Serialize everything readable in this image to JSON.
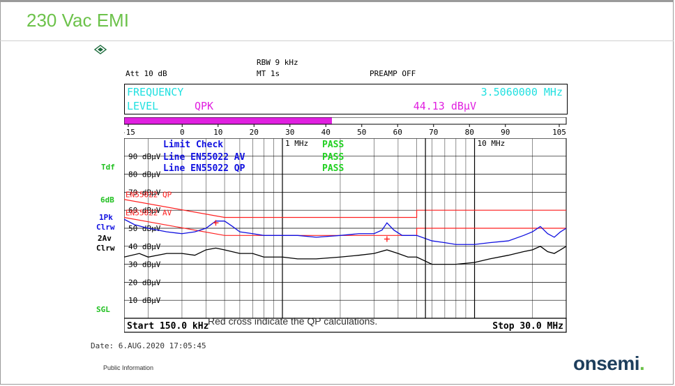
{
  "slide": {
    "title": "230 Vac EMI",
    "caption": "Red cross indicate the QP calculations.",
    "public_info": "Public Information",
    "brand": "onsemi",
    "brand_dot": "."
  },
  "instrument": {
    "rbw": "RBW 9 kHz",
    "att": "Att  10 dB",
    "mt": "MT   1s",
    "preamp": "PREAMP OFF",
    "marker_freq_label": "FREQUENCY",
    "marker_freq_value": "3.5060000 MHz",
    "marker_level_label": "LEVEL",
    "marker_detector": "QPK",
    "marker_level_value": "44.13 dBµV",
    "bar_fill_percent": 47,
    "bar_scale": [
      "-15",
      "0",
      "10",
      "20",
      "30",
      "40",
      "50",
      "60",
      "70",
      "80",
      "90",
      "105"
    ],
    "side_labels": {
      "tdf": "Tdf",
      "six_db": "6dB",
      "pk": "1Pk",
      "clrw1": "Clrw",
      "av": "2Av",
      "clrw2": "Clrw",
      "sgl": "SGL"
    },
    "date": "Date:  6.AUG.2020   17:05:45",
    "colors": {
      "trace_pk": "#1010e0",
      "trace_av": "#000000",
      "limit": "#ff2020",
      "freq_text": "#20e0e0",
      "level_text": "#e020e0",
      "pass": "#20d020",
      "side_green": "#20c020",
      "side_blue": "#1010e0"
    }
  },
  "chart_data": {
    "type": "line",
    "title": "",
    "xlabel": "",
    "ylabel": "",
    "x_scale": "log",
    "xlim_mhz": [
      0.15,
      30
    ],
    "ylim": [
      0,
      100
    ],
    "start_label": "Start 150.0 kHz",
    "stop_label": "Stop 30.0 MHz",
    "x_markers": [
      "1 MHz",
      "10 MHz"
    ],
    "y_tick_labels": [
      {
        "v": 90,
        "t": "90 dBµV"
      },
      {
        "v": 80,
        "t": "80 dBµV"
      },
      {
        "v": 70,
        "t": "70 dBµV"
      },
      {
        "v": 60,
        "t": "60 dBµV"
      },
      {
        "v": 50,
        "t": "50 dBµV"
      },
      {
        "v": 40,
        "t": "40 dBµV"
      },
      {
        "v": 30,
        "t": "30 dBµV"
      },
      {
        "v": 20,
        "t": "20 dBµV"
      },
      {
        "v": 10,
        "t": "10 dBµV"
      }
    ],
    "limit_check": {
      "title": "Limit Check",
      "title_status": "PASS",
      "lines": [
        {
          "label": "Line EN55022 AV",
          "status": "PASS"
        },
        {
          "label": "Line EN55022 QP",
          "status": "PASS"
        }
      ]
    },
    "limit_lines": [
      {
        "name": "EN55022 QP",
        "points": [
          [
            0.15,
            66
          ],
          [
            0.5,
            56
          ],
          [
            5,
            56
          ],
          [
            5,
            60
          ],
          [
            30,
            60
          ]
        ]
      },
      {
        "name": "EN55022 AV",
        "points": [
          [
            0.15,
            56
          ],
          [
            0.5,
            46
          ],
          [
            5,
            46
          ],
          [
            5,
            50
          ],
          [
            30,
            50
          ]
        ]
      }
    ],
    "series": [
      {
        "name": "1Pk",
        "points": [
          [
            0.15,
            55
          ],
          [
            0.17,
            52
          ],
          [
            0.2,
            50
          ],
          [
            0.25,
            48
          ],
          [
            0.3,
            47
          ],
          [
            0.35,
            48
          ],
          [
            0.4,
            50
          ],
          [
            0.45,
            54
          ],
          [
            0.5,
            54
          ],
          [
            0.55,
            51
          ],
          [
            0.6,
            48
          ],
          [
            0.7,
            47
          ],
          [
            0.8,
            46
          ],
          [
            1,
            46
          ],
          [
            1.2,
            46
          ],
          [
            1.5,
            45
          ],
          [
            2,
            46
          ],
          [
            2.5,
            47
          ],
          [
            3,
            47
          ],
          [
            3.3,
            49
          ],
          [
            3.5,
            53
          ],
          [
            3.8,
            49
          ],
          [
            4.2,
            46
          ],
          [
            5,
            46
          ],
          [
            6,
            43
          ],
          [
            7,
            42
          ],
          [
            8,
            41
          ],
          [
            10,
            41
          ],
          [
            12,
            42
          ],
          [
            15,
            43
          ],
          [
            18,
            46
          ],
          [
            20,
            48
          ],
          [
            22,
            51
          ],
          [
            24,
            47
          ],
          [
            26,
            45
          ],
          [
            28,
            48
          ],
          [
            30,
            50
          ]
        ]
      },
      {
        "name": "2Av",
        "points": [
          [
            0.15,
            34
          ],
          [
            0.18,
            36
          ],
          [
            0.2,
            34
          ],
          [
            0.25,
            36
          ],
          [
            0.3,
            36
          ],
          [
            0.35,
            35
          ],
          [
            0.4,
            38
          ],
          [
            0.45,
            39
          ],
          [
            0.5,
            38
          ],
          [
            0.6,
            36
          ],
          [
            0.7,
            36
          ],
          [
            0.8,
            34
          ],
          [
            1,
            34
          ],
          [
            1.2,
            33
          ],
          [
            1.5,
            33
          ],
          [
            2,
            34
          ],
          [
            2.5,
            35
          ],
          [
            3,
            36
          ],
          [
            3.5,
            38
          ],
          [
            4,
            36
          ],
          [
            4.5,
            34
          ],
          [
            5,
            34
          ],
          [
            6,
            30
          ],
          [
            7,
            30
          ],
          [
            8,
            30
          ],
          [
            10,
            31
          ],
          [
            12,
            33
          ],
          [
            15,
            35
          ],
          [
            18,
            37
          ],
          [
            20,
            38
          ],
          [
            22,
            40
          ],
          [
            24,
            37
          ],
          [
            26,
            36
          ],
          [
            28,
            38
          ],
          [
            30,
            40
          ]
        ]
      }
    ],
    "qp_calculation_points": [
      [
        0.45,
        53
      ],
      [
        3.5,
        44
      ]
    ]
  }
}
